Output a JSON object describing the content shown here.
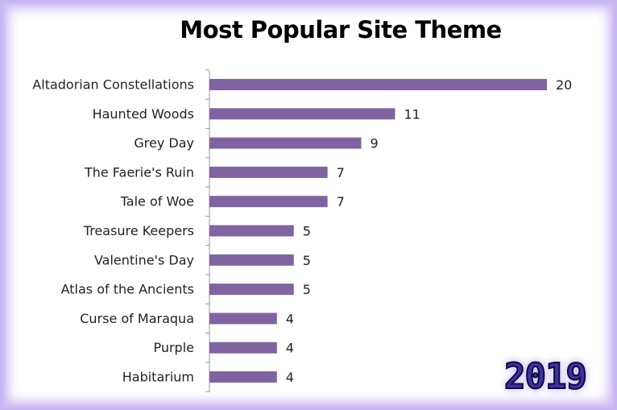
{
  "chart_data": {
    "type": "bar",
    "orientation": "horizontal",
    "title": "Most Popular Site Theme",
    "categories": [
      "Altadorian Constellations",
      "Haunted Woods",
      "Grey Day",
      "The Faerie's Ruin",
      "Tale of Woe",
      "Treasure Keepers",
      "Valentine's Day",
      "Atlas of the Ancients",
      "Curse of Maraqua",
      "Purple",
      "Habitarium"
    ],
    "values": [
      20,
      11,
      9,
      7,
      7,
      5,
      5,
      5,
      4,
      4,
      4
    ],
    "xlim": [
      0,
      20
    ],
    "data_labels": true,
    "grid": false,
    "bar_color": "#8064a2"
  },
  "badge": {
    "year": "2019"
  },
  "colors": {
    "frame_glow": "#c6b6ef",
    "year_text": "#3f2fa8"
  }
}
